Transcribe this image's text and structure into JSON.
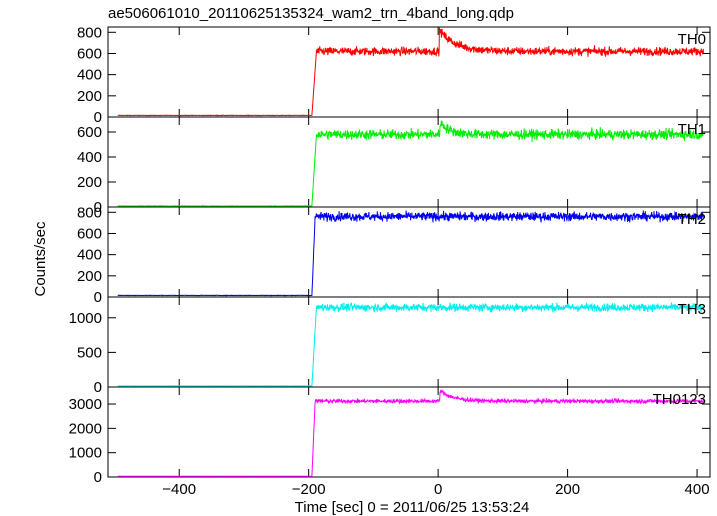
{
  "chart_data": {
    "type": "line",
    "title": "ae506061010_20110625135324_wam2_trn_4band_long.qdp",
    "xlabel": "Time [sec] 0 = 2011/06/25 13:53:24",
    "ylabel": "Counts/sec",
    "xlim": [
      -510,
      420
    ],
    "xticks": [
      -400,
      -200,
      0,
      200,
      400
    ],
    "xtick_labels": [
      "−400",
      "−200",
      "0",
      "200",
      "400"
    ],
    "panels": [
      {
        "name": "TH0",
        "color": "#ff0000",
        "ylim": [
          0,
          850
        ],
        "yticks": [
          0,
          200,
          400,
          600,
          800
        ],
        "pre_level": 15,
        "post_level": 620,
        "noise": 28,
        "onset": -195,
        "rise_end": -188,
        "bump": {
          "x": 2,
          "peak": 820,
          "decay": 25
        }
      },
      {
        "name": "TH1",
        "color": "#00ee00",
        "ylim": [
          0,
          720
        ],
        "yticks": [
          0,
          200,
          400,
          600
        ],
        "pre_level": 8,
        "post_level": 580,
        "noise": 28,
        "onset": -195,
        "rise_end": -188,
        "bump": {
          "x": 3,
          "peak": 680,
          "decay": 15
        }
      },
      {
        "name": "TH2",
        "color": "#0000ee",
        "ylim": [
          0,
          850
        ],
        "yticks": [
          0,
          200,
          400,
          600,
          800
        ],
        "pre_level": 15,
        "post_level": 760,
        "noise": 30,
        "onset": -195,
        "rise_end": -190,
        "bump": null
      },
      {
        "name": "TH3",
        "color": "#00eeee",
        "ylim": [
          0,
          1300
        ],
        "yticks": [
          0,
          500,
          1000
        ],
        "pre_level": 15,
        "post_level": 1150,
        "noise": 40,
        "onset": -195,
        "rise_end": -188,
        "bump": null
      },
      {
        "name": "TH0123",
        "color": "#ff00ff",
        "ylim": [
          0,
          3700
        ],
        "yticks": [
          0,
          1000,
          2000,
          3000
        ],
        "pre_level": 30,
        "post_level": 3120,
        "noise": 60,
        "onset": -195,
        "rise_end": -190,
        "bump": {
          "x": 3,
          "peak": 3550,
          "decay": 20
        }
      }
    ]
  }
}
